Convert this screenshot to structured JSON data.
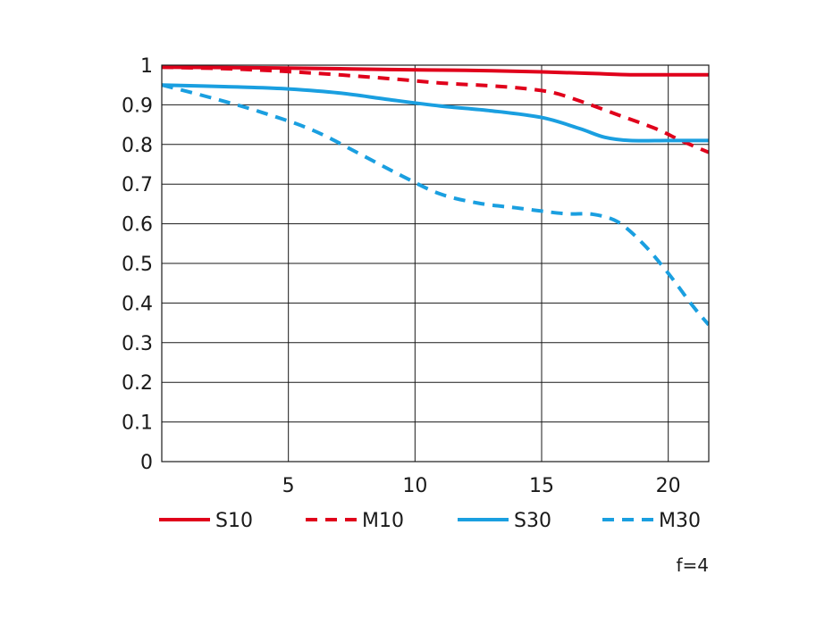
{
  "chart_data": {
    "type": "line",
    "title": "",
    "xlabel": "",
    "ylabel": "",
    "xlim": [
      0,
      21.6
    ],
    "ylim": [
      0,
      1
    ],
    "x_ticks": [
      5,
      10,
      15,
      20
    ],
    "y_ticks": [
      0,
      0.1,
      0.2,
      0.3,
      0.4,
      0.5,
      0.6,
      0.7,
      0.8,
      0.9,
      1
    ],
    "y_tick_labels": [
      "0",
      "0.1",
      "0.2",
      "0.3",
      "0.4",
      "0.5",
      "0.6",
      "0.7",
      "0.8",
      "0.9",
      "1"
    ],
    "x_tick_labels": [
      "5",
      "10",
      "15",
      "20"
    ],
    "grid": true,
    "legend_position": "bottom",
    "note": "f=4",
    "series": [
      {
        "name": "S10",
        "color": "#e0001b",
        "style": "solid",
        "points": [
          [
            0,
            0.995
          ],
          [
            3,
            0.994
          ],
          [
            6,
            0.992
          ],
          [
            9,
            0.989
          ],
          [
            12,
            0.987
          ],
          [
            15,
            0.983
          ],
          [
            17,
            0.979
          ],
          [
            18.5,
            0.976
          ],
          [
            20,
            0.976
          ],
          [
            21.6,
            0.976
          ]
        ]
      },
      {
        "name": "M10",
        "color": "#e0001b",
        "style": "dashed",
        "points": [
          [
            0,
            0.995
          ],
          [
            3,
            0.99
          ],
          [
            6,
            0.98
          ],
          [
            9,
            0.966
          ],
          [
            11,
            0.955
          ],
          [
            13,
            0.948
          ],
          [
            14.5,
            0.94
          ],
          [
            15.5,
            0.93
          ],
          [
            16.5,
            0.91
          ],
          [
            18,
            0.875
          ],
          [
            19.5,
            0.84
          ],
          [
            20.5,
            0.81
          ],
          [
            21.6,
            0.78
          ]
        ]
      },
      {
        "name": "S30",
        "color": "#1a9fe0",
        "style": "solid",
        "points": [
          [
            0,
            0.95
          ],
          [
            3,
            0.945
          ],
          [
            5,
            0.94
          ],
          [
            7,
            0.93
          ],
          [
            9,
            0.913
          ],
          [
            11,
            0.897
          ],
          [
            13,
            0.885
          ],
          [
            15,
            0.868
          ],
          [
            16.5,
            0.84
          ],
          [
            17.5,
            0.818
          ],
          [
            18.5,
            0.81
          ],
          [
            20,
            0.81
          ],
          [
            21.6,
            0.81
          ]
        ]
      },
      {
        "name": "M30",
        "color": "#1a9fe0",
        "style": "dashed",
        "points": [
          [
            0,
            0.95
          ],
          [
            2,
            0.917
          ],
          [
            4,
            0.88
          ],
          [
            6,
            0.835
          ],
          [
            8,
            0.77
          ],
          [
            9.5,
            0.72
          ],
          [
            11,
            0.675
          ],
          [
            12.5,
            0.652
          ],
          [
            14,
            0.64
          ],
          [
            15,
            0.632
          ],
          [
            16,
            0.625
          ],
          [
            17,
            0.624
          ],
          [
            18,
            0.605
          ],
          [
            19,
            0.55
          ],
          [
            20,
            0.475
          ],
          [
            21,
            0.39
          ],
          [
            21.6,
            0.345
          ]
        ]
      }
    ]
  }
}
